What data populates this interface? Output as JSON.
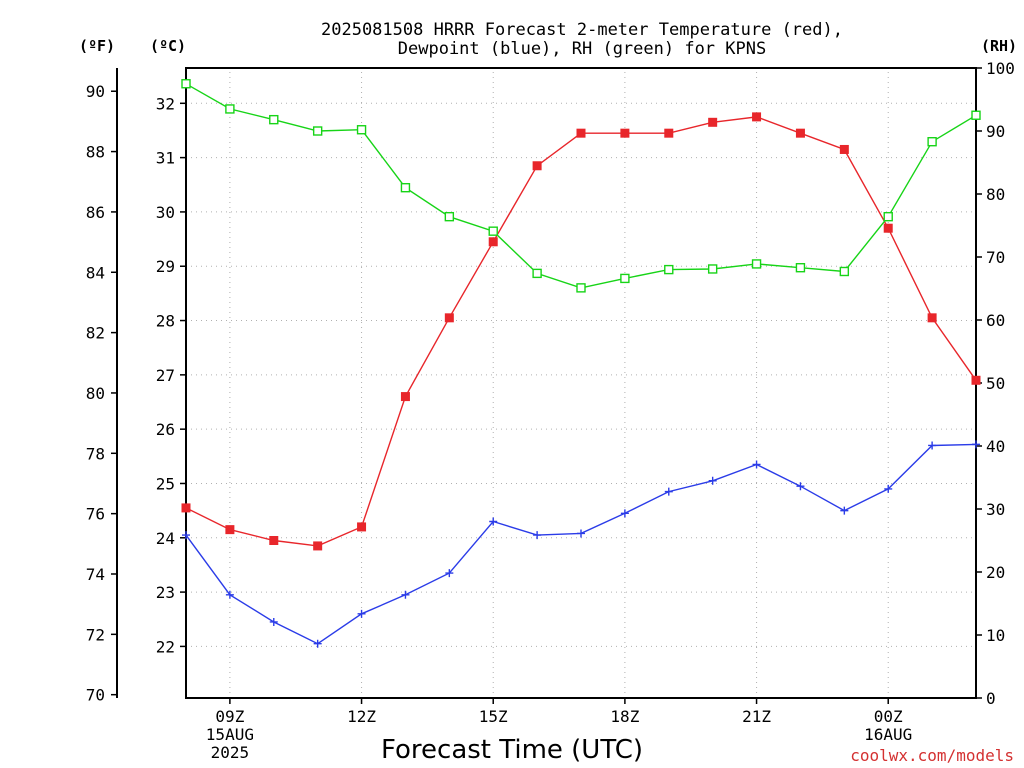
{
  "colors": {
    "temperature": "#e8262b",
    "dewpoint": "#2b3ce8",
    "rh": "#17d417",
    "credit": "#d43131",
    "grid": "#b0b0b0"
  },
  "chart_data": {
    "type": "line",
    "title_line1": "2025081508 HRRR Forecast 2-meter Temperature (red),",
    "title_line2": "Dewpoint (blue), RH (green) for KPNS",
    "xlabel": "Forecast Time (UTC)",
    "credit": "coolwx.com/models",
    "unit_f": "(ºF)",
    "unit_c": "(ºC)",
    "unit_rh": "(RH)",
    "x": [
      "08Z",
      "09Z",
      "10Z",
      "11Z",
      "12Z",
      "13Z",
      "14Z",
      "15Z",
      "16Z",
      "17Z",
      "18Z",
      "19Z",
      "20Z",
      "21Z",
      "22Z",
      "23Z",
      "00Z",
      "01Z",
      "02Z"
    ],
    "xlim_hours": [
      0,
      18
    ],
    "x_ticks": [
      {
        "hour": 1,
        "lines": [
          "09Z",
          "15AUG",
          "2025"
        ]
      },
      {
        "hour": 4,
        "lines": [
          "12Z"
        ]
      },
      {
        "hour": 7,
        "lines": [
          "15Z"
        ]
      },
      {
        "hour": 10,
        "lines": [
          "18Z"
        ]
      },
      {
        "hour": 13,
        "lines": [
          "21Z"
        ]
      },
      {
        "hour": 16,
        "lines": [
          "00Z",
          "16AUG"
        ]
      }
    ],
    "y_celsius": {
      "ylim": [
        21.05,
        32.65
      ],
      "ticks": [
        22,
        23,
        24,
        25,
        26,
        27,
        28,
        29,
        30,
        31,
        32
      ]
    },
    "y_fahrenheit": {
      "ticks": [
        70,
        72,
        74,
        76,
        78,
        80,
        82,
        84,
        86,
        88,
        90
      ]
    },
    "y_rh": {
      "ylim": [
        0,
        100
      ],
      "ticks": [
        0,
        10,
        20,
        30,
        40,
        50,
        60,
        70,
        80,
        90,
        100
      ]
    },
    "series": [
      {
        "name": "Temperature",
        "axis": "celsius",
        "marker": "filled-square",
        "values": [
          24.55,
          24.15,
          23.95,
          23.85,
          24.2,
          26.6,
          28.05,
          29.45,
          30.85,
          31.45,
          31.45,
          31.45,
          31.65,
          31.75,
          31.45,
          31.15,
          29.7,
          28.05,
          26.9
        ]
      },
      {
        "name": "Dewpoint",
        "axis": "celsius",
        "marker": "plus",
        "values": [
          24.05,
          22.95,
          22.45,
          22.05,
          22.6,
          22.95,
          23.35,
          24.3,
          24.05,
          24.08,
          24.45,
          24.85,
          25.05,
          25.35,
          24.95,
          24.5,
          24.9,
          25.7,
          25.72
        ]
      },
      {
        "name": "RH",
        "axis": "rh",
        "marker": "open-square",
        "values": [
          97.5,
          93.5,
          91.8,
          90,
          90.2,
          81,
          76.4,
          74.1,
          67.4,
          65.1,
          66.6,
          68,
          68.1,
          68.9,
          68.3,
          67.7,
          76.4,
          88.3,
          92.5
        ]
      }
    ]
  }
}
